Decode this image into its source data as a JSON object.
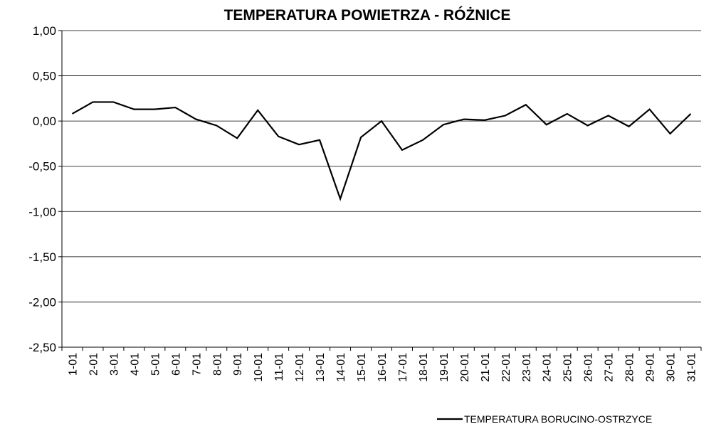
{
  "chart_data": {
    "type": "line",
    "title": "TEMPERATURA POWIETRZA - RÓŻNICE",
    "categories": [
      "1-01",
      "2-01",
      "3-01",
      "4-01",
      "5-01",
      "6-01",
      "7-01",
      "8-01",
      "9-01",
      "10-01",
      "11-01",
      "12-01",
      "13-01",
      "14-01",
      "15-01",
      "16-01",
      "17-01",
      "18-01",
      "19-01",
      "20-01",
      "21-01",
      "22-01",
      "23-01",
      "24-01",
      "25-01",
      "26-01",
      "27-01",
      "28-01",
      "29-01",
      "30-01",
      "31-01"
    ],
    "series": [
      {
        "name": "TEMPERATURA BORUCINO-OSTRZYCE",
        "color": "#000000",
        "values": [
          0.08,
          0.21,
          0.21,
          0.13,
          0.13,
          0.15,
          0.02,
          -0.05,
          -0.19,
          0.12,
          -0.17,
          -0.26,
          -0.21,
          -0.86,
          -0.18,
          0.0,
          -0.32,
          -0.21,
          -0.04,
          0.02,
          0.01,
          0.06,
          0.18,
          -0.04,
          0.08,
          -0.05,
          0.06,
          -0.06,
          0.13,
          -0.14,
          0.08
        ]
      }
    ],
    "ylim": [
      -2.5,
      1
    ],
    "yticks": [
      {
        "value": -2.5,
        "label": "-2,50"
      },
      {
        "value": -2,
        "label": "-2,00"
      },
      {
        "value": -1.5,
        "label": "-1,50"
      },
      {
        "value": -1,
        "label": "-1,00"
      },
      {
        "value": -0.5,
        "label": "-0,50"
      },
      {
        "value": 0,
        "label": "0,00"
      },
      {
        "value": 0.5,
        "label": "0,50"
      },
      {
        "value": 1,
        "label": "1,00"
      }
    ],
    "grid": true,
    "legend": "bottom-right"
  }
}
